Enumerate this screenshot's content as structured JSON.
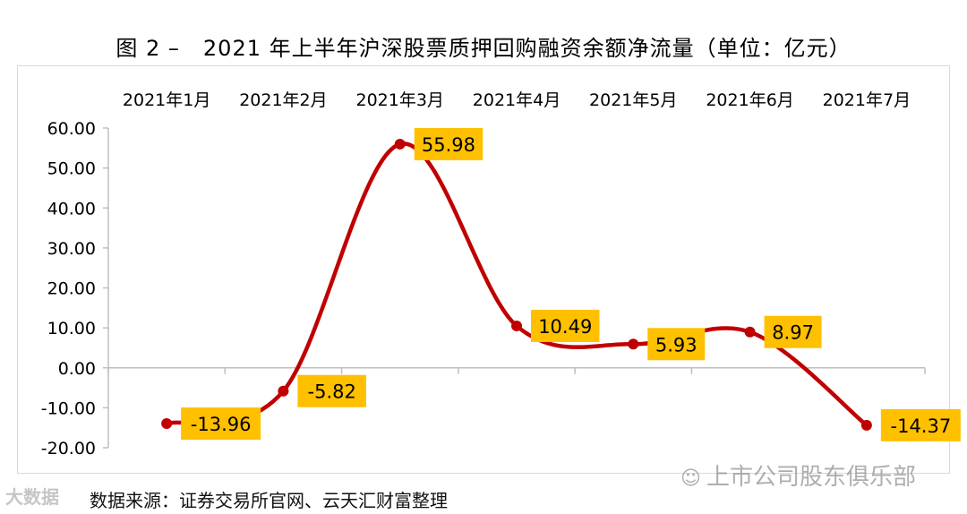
{
  "header": {
    "figure_label": "图 2 –",
    "title": "2021 年上半年沪深股票质押回购融资余额净流量（单位：亿元）"
  },
  "source_text": "数据来源：证券交易所官网、云天汇财富整理",
  "watermark_left": "大数据",
  "watermark_right": "上市公司股东俱乐部",
  "colors": {
    "line": "#c00000",
    "label_bg": "#ffc000",
    "axis": "#bfbfbf"
  },
  "chart_data": {
    "type": "line",
    "smooth": true,
    "categories": [
      "2021年1月",
      "2021年2月",
      "2021年3月",
      "2021年4月",
      "2021年5月",
      "2021年6月",
      "2021年7月"
    ],
    "values": [
      -13.96,
      -5.82,
      55.98,
      10.49,
      5.93,
      8.97,
      -14.37
    ],
    "data_labels": [
      "-13.96",
      "-5.82",
      "55.98",
      "10.49",
      "5.93",
      "8.97",
      "-14.37"
    ],
    "ylim": [
      -20,
      60
    ],
    "ytick_values": [
      -20,
      -10,
      0,
      10,
      20,
      30,
      40,
      50,
      60
    ],
    "ytick_labels": [
      "-20.00",
      "-10.00",
      "0.00",
      "10.00",
      "20.00",
      "30.00",
      "40.00",
      "50.00",
      "60.00"
    ],
    "xaxis_position": "top",
    "grid": false,
    "legend": "none"
  }
}
